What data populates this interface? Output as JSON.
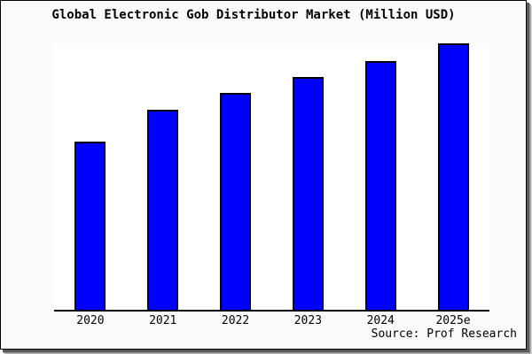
{
  "title": "Global Electronic Gob Distributor Market (Million USD)",
  "source": "Source: Prof Research",
  "colors": {
    "bar_fill": "#0000ff",
    "bar_border": "#000000",
    "plot_background": "#ffffff",
    "canvas_background": "#fafafa",
    "frame_border": "#000000",
    "text": "#000000"
  },
  "chart_data": {
    "type": "bar",
    "title": "Global Electronic Gob Distributor Market (Million USD)",
    "categories": [
      "2020",
      "2021",
      "2022",
      "2023",
      "2024",
      "2025e"
    ],
    "values": [
      63,
      75,
      81.5,
      87.5,
      93.5,
      100
    ],
    "xlabel": "",
    "ylabel": "",
    "ylim": [
      0,
      100
    ],
    "yaxis_visible": false,
    "grid": false,
    "legend": false,
    "bar_color": "#0000ff",
    "annotation": "Source: Prof Research"
  }
}
